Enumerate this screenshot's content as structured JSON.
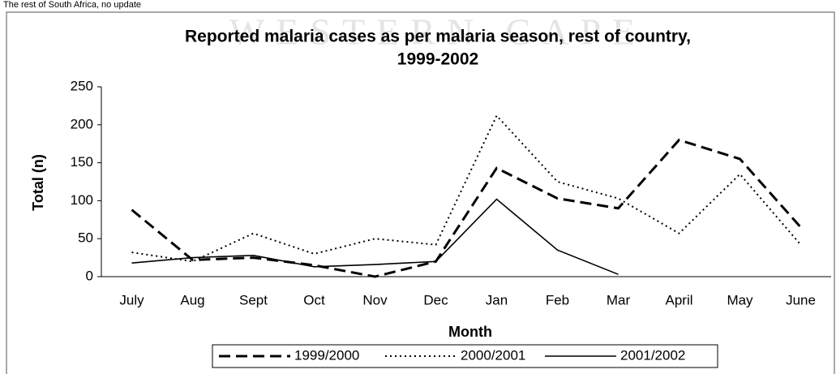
{
  "header": {
    "text": "The rest of South Africa, no update",
    "watermark": "WESTERN CAPE"
  },
  "chart_data": {
    "type": "line",
    "title": "Reported malaria cases as per malaria season, rest of country,",
    "subtitle": "1999-2002",
    "x_label": "Month",
    "y_label": "Total (n)",
    "categories": [
      "July",
      "Aug",
      "Sept",
      "Oct",
      "Nov",
      "Dec",
      "Jan",
      "Feb",
      "Mar",
      "April",
      "May",
      "June"
    ],
    "series": [
      {
        "name": "1999/2000",
        "color": "#000000",
        "line_style": "dashed",
        "values": [
          88,
          22,
          25,
          15,
          0,
          20,
          143,
          103,
          90,
          180,
          155,
          65
        ]
      },
      {
        "name": "2000/2001",
        "color": "#000000",
        "line_style": "dotted",
        "values": [
          32,
          20,
          57,
          30,
          50,
          42,
          212,
          125,
          103,
          57,
          135,
          42
        ]
      },
      {
        "name": "2001/2002",
        "color": "#000000",
        "line_style": "solid",
        "values": [
          18,
          25,
          28,
          13,
          16,
          20,
          102,
          35,
          3,
          null,
          null,
          null
        ]
      }
    ],
    "ylim": [
      0,
      250
    ],
    "yticks": [
      0,
      50,
      100,
      150,
      200,
      250
    ],
    "grid": false,
    "legend": "bottom"
  }
}
